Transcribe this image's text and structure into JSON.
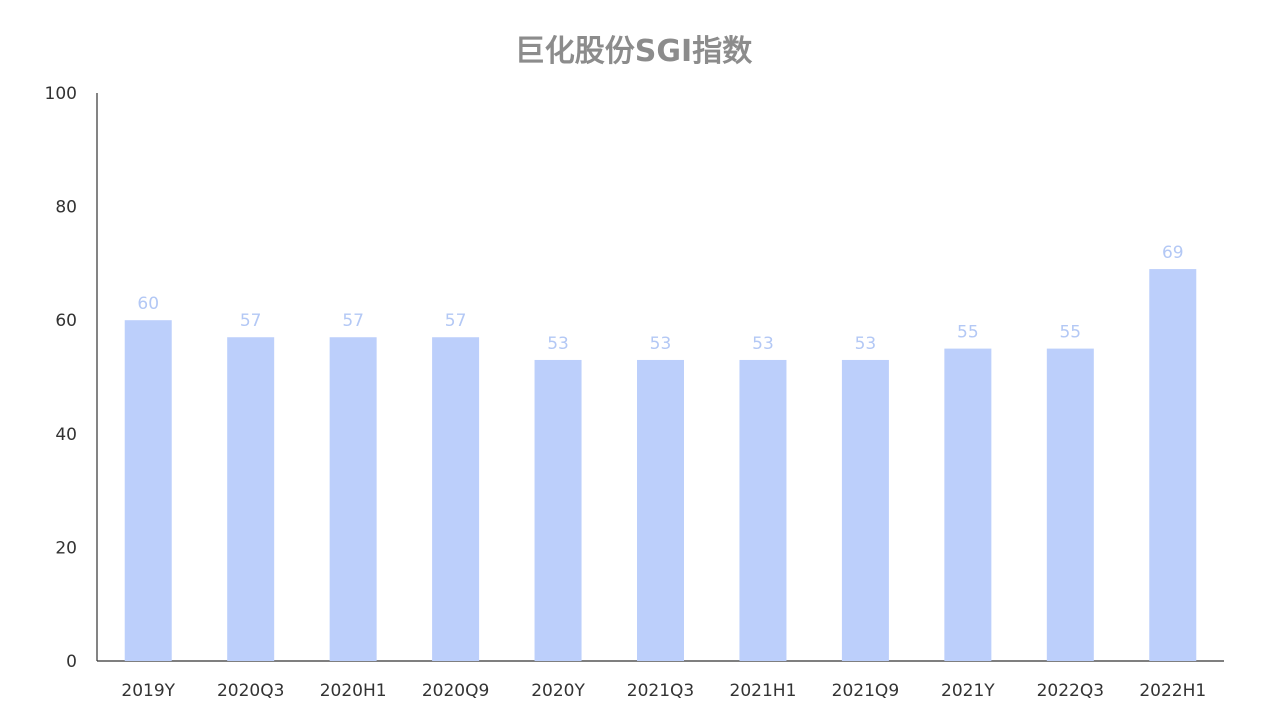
{
  "chart_data": {
    "type": "bar",
    "title": "巨化股份SGI指数",
    "xlabel": "",
    "ylabel": "",
    "categories": [
      "2019Y",
      "2020Q3",
      "2020H1",
      "2020Q9",
      "2020Y",
      "2021Q3",
      "2021H1",
      "2021Q9",
      "2021Y",
      "2022Q3",
      "2022H1"
    ],
    "values": [
      60,
      57,
      57,
      57,
      53,
      53,
      53,
      53,
      55,
      55,
      69
    ],
    "ylim": [
      0,
      100
    ],
    "yticks": [
      0,
      20,
      40,
      60,
      80,
      100
    ],
    "grid": false,
    "legend": "none",
    "colors": {
      "bar": "#bccffb",
      "data_label": "#b3c8f5",
      "title": "#8c8c8c",
      "axis": "#333333"
    }
  }
}
